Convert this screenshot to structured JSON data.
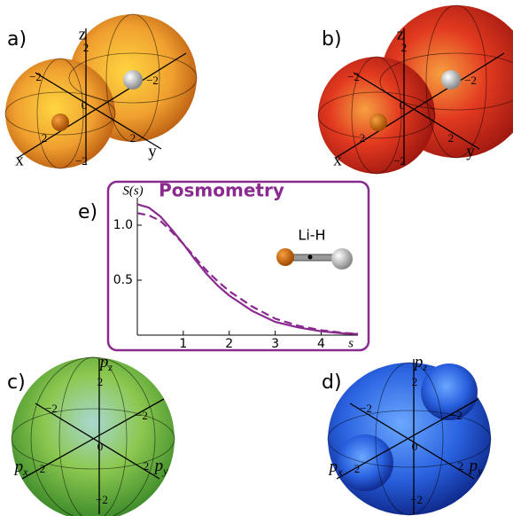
{
  "panels": [
    {
      "label": "a)",
      "axis_labels": [
        "z",
        "x",
        "y"
      ],
      "tick_labels": [
        "2",
        "−2",
        "0",
        "−2",
        "2",
        "2",
        "−2"
      ]
    },
    {
      "label": "b)",
      "axis_labels": [
        "z",
        "x",
        "y"
      ],
      "tick_labels": [
        "2",
        "−2",
        "0",
        "−2",
        "2",
        "2",
        "−2"
      ]
    },
    {
      "label": "c)",
      "axis_labels": [
        "pz",
        "px",
        "py"
      ],
      "tick_labels": [
        "2",
        "−2",
        "0",
        "−2",
        "2",
        "2",
        "−2"
      ]
    },
    {
      "label": "d)",
      "axis_labels": [
        "pz",
        "px",
        "py"
      ],
      "tick_labels": [
        "2",
        "−2",
        "0",
        "−2",
        "2",
        "2",
        "−2"
      ]
    }
  ],
  "chart_data": {
    "type": "line",
    "panel_label": "e)",
    "title": "Posmometry",
    "y_label": "S(s)",
    "x_label": "s",
    "annotation": "Li-H",
    "x": [
      0,
      0.25,
      0.5,
      0.75,
      1,
      1.25,
      1.5,
      1.75,
      2,
      2.5,
      3,
      3.5,
      4,
      4.5,
      4.8
    ],
    "series": [
      {
        "color": "#8b2a8e",
        "dash": false,
        "values": [
          1.19,
          1.16,
          1.08,
          0.96,
          0.83,
          0.69,
          0.56,
          0.45,
          0.36,
          0.22,
          0.12,
          0.07,
          0.035,
          0.015,
          0.01
        ]
      },
      {
        "color": "#8b2a8e",
        "dash": true,
        "values": [
          1.11,
          1.09,
          1.04,
          0.94,
          0.83,
          0.71,
          0.59,
          0.49,
          0.4,
          0.26,
          0.15,
          0.085,
          0.045,
          0.02,
          0.013
        ]
      }
    ],
    "xlim": [
      0,
      4.8
    ],
    "ylim": [
      0,
      1.25
    ],
    "xticks": [
      1,
      2,
      3,
      4
    ],
    "yticks": [
      0.5,
      {
        "value": 1,
        "label": "1.0"
      }
    ]
  }
}
